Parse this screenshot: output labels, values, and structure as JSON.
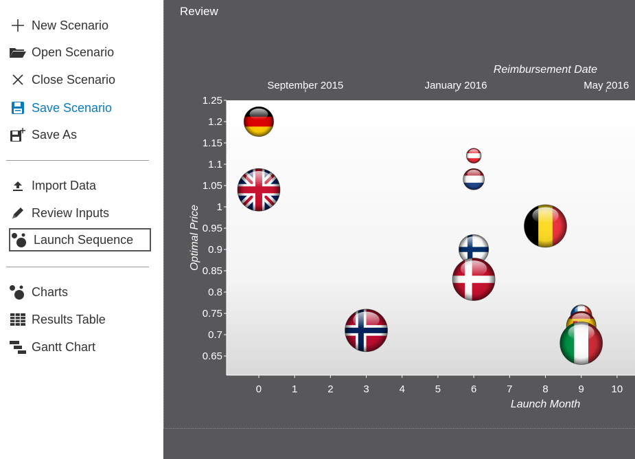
{
  "sidebar": {
    "new_scenario": "New Scenario",
    "open_scenario": "Open Scenario",
    "close_scenario": "Close Scenario",
    "save_scenario": "Save Scenario",
    "save_as": "Save As",
    "import_data": "Import Data",
    "review_inputs": "Review Inputs",
    "launch_sequence": "Launch Sequence",
    "charts": "Charts",
    "results_table": "Results Table",
    "gantt_chart": "Gantt Chart"
  },
  "main": {
    "title": "Review"
  },
  "colors": {
    "accent": "#0b7bc0",
    "panel": "#58585a",
    "text": "#333333"
  },
  "chart_data": {
    "type": "scatter",
    "xlabel": "Launch Month",
    "ylabel": "Optimal Price",
    "top_axis_label": "Reimbursement Date",
    "top_ticks": [
      {
        "label": "September 2015",
        "x": 1.3
      },
      {
        "label": "January 2016",
        "x": 5.5
      },
      {
        "label": "May 2016",
        "x": 9.7
      }
    ],
    "xlim": [
      -0.9,
      10.5
    ],
    "ylim": [
      0.605,
      1.25
    ],
    "x_ticks": [
      0,
      1,
      2,
      3,
      4,
      5,
      6,
      7,
      8,
      9,
      10
    ],
    "y_ticks": [
      0.65,
      0.7,
      0.75,
      0.8,
      0.85,
      0.9,
      0.95,
      1,
      1.05,
      1.1,
      1.15,
      1.2,
      1.25
    ],
    "y_tick_labels": [
      "0.65",
      "0.7",
      "0.75",
      "0.8",
      "0.85",
      "0.9",
      "0.95",
      "1",
      "1.05",
      "1.1",
      "1.15",
      "1.2",
      "1.25"
    ],
    "points": [
      {
        "country": "germany-flag",
        "x": 0,
        "y": 1.2,
        "size": 0.7
      },
      {
        "country": "uk-flag",
        "x": 0,
        "y": 1.04,
        "size": 1.0
      },
      {
        "country": "norway-flag",
        "x": 3,
        "y": 0.71,
        "size": 1.0
      },
      {
        "country": "austria-flag",
        "x": 6,
        "y": 1.12,
        "size": 0.35
      },
      {
        "country": "netherlands-flag",
        "x": 6,
        "y": 1.065,
        "size": 0.5
      },
      {
        "country": "finland-flag",
        "x": 6,
        "y": 0.9,
        "size": 0.7
      },
      {
        "country": "denmark-flag",
        "x": 6,
        "y": 0.83,
        "size": 1.0
      },
      {
        "country": "belgium-flag",
        "x": 8,
        "y": 0.955,
        "size": 1.0
      },
      {
        "country": "france-flag",
        "x": 9,
        "y": 0.745,
        "size": 0.5
      },
      {
        "country": "spain-flag",
        "x": 9,
        "y": 0.72,
        "size": 0.7
      },
      {
        "country": "italy-flag",
        "x": 9,
        "y": 0.68,
        "size": 1.0
      }
    ]
  }
}
